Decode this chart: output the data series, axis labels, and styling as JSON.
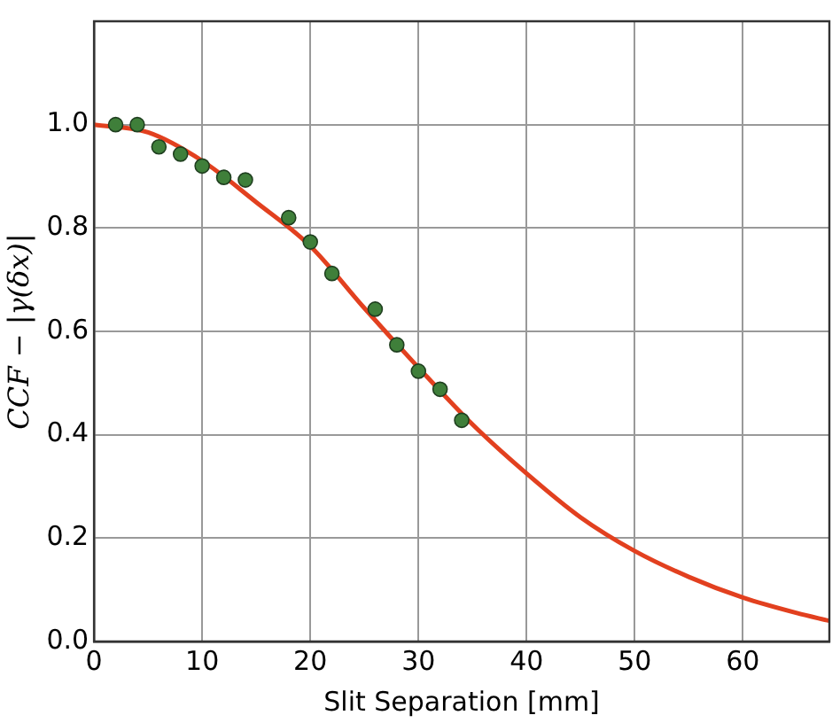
{
  "chart_data": {
    "type": "scatter",
    "xlabel": "Slit Separation [mm]",
    "ylabel": "CCF − |γ(δx)|",
    "xlim": [
      0,
      68
    ],
    "xticks": [
      0,
      10,
      20,
      30,
      40,
      50,
      60
    ],
    "ylim": [
      0,
      1.2
    ],
    "yticks": [
      {
        "value": 0,
        "label": "0.0"
      },
      {
        "value": 0.2,
        "label": "0.2"
      },
      {
        "value": 0.4,
        "label": "0.4"
      },
      {
        "value": 0.6,
        "label": "0.6"
      },
      {
        "value": 0.8,
        "label": "0.8"
      },
      {
        "value": 1,
        "label": "1.0"
      }
    ],
    "grid": true,
    "legend": false,
    "series": [
      {
        "type": "scatter",
        "color": "#3f7f3a",
        "marker": "circle",
        "x": [
          2,
          4,
          6,
          8,
          10,
          12,
          14,
          18,
          20,
          22,
          26,
          28,
          30,
          32,
          34
        ],
        "values": [
          1.0,
          1.0,
          0.957,
          0.943,
          0.92,
          0.898,
          0.893,
          0.82,
          0.773,
          0.712,
          0.643,
          0.574,
          0.523,
          0.488,
          0.428
        ]
      },
      {
        "type": "line",
        "color": "#e2401f",
        "marker": "none",
        "line_style": "solid",
        "x": [
          0,
          5,
          10,
          15,
          20,
          25,
          30,
          35,
          40,
          45,
          50,
          55,
          60,
          65,
          68
        ],
        "values": [
          1.0,
          0.985,
          0.93,
          0.85,
          0.765,
          0.645,
          0.53,
          0.42,
          0.325,
          0.24,
          0.175,
          0.125,
          0.085,
          0.055,
          0.04
        ]
      }
    ]
  }
}
